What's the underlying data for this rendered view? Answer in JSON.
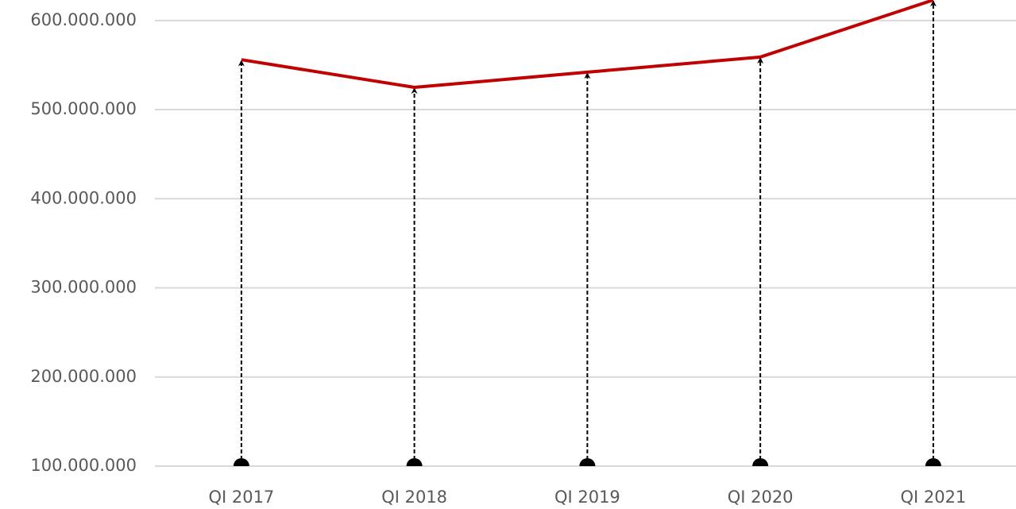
{
  "chart_data": {
    "type": "line",
    "categories": [
      "QI 2017",
      "QI 2018",
      "QI 2019",
      "QI 2020",
      "QI 2021"
    ],
    "series": [
      {
        "color": "#c00000",
        "values": [
          556000000,
          525000000,
          542000000,
          559000000,
          623000000
        ]
      }
    ],
    "ylim": [
      100000000,
      623000000
    ],
    "yticks": [
      {
        "value": 100000000,
        "label": "100.000.000"
      },
      {
        "value": 200000000,
        "label": "200.000.000"
      },
      {
        "value": 300000000,
        "label": "300.000.000"
      },
      {
        "value": 400000000,
        "label": "400.000.000"
      },
      {
        "value": 500000000,
        "label": "500.000.000"
      },
      {
        "value": 600000000,
        "label": "600.000.000"
      }
    ],
    "grid": true
  }
}
